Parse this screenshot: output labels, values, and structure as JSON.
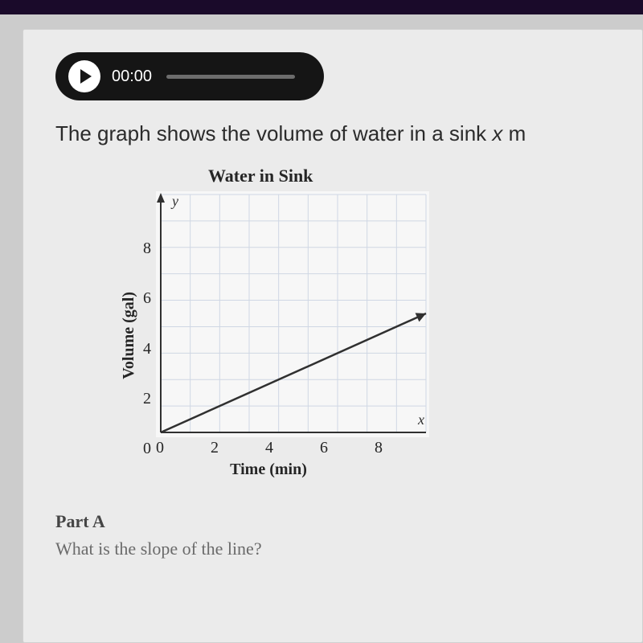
{
  "audio": {
    "time": "00:00"
  },
  "prompt": {
    "prefix": "The graph shows the volume of water in a sink ",
    "var": "x",
    "suffix": " m"
  },
  "chart": {
    "title": "Water in Sink",
    "type": "line",
    "x_label": "Time (min)",
    "y_label": "Volume (gal)",
    "y_var": "y",
    "x_var": "x",
    "xlim": [
      0,
      9
    ],
    "ylim": [
      0,
      9
    ],
    "x_ticks": [
      0,
      2,
      4,
      6,
      8
    ],
    "y_ticks": [
      0,
      2,
      4,
      6,
      8
    ],
    "grid_color": "#cfd7e4",
    "axis_color": "#303030",
    "line_color": "#303030",
    "line_width": 2.5,
    "background_color": "#f7f7f7",
    "line_points": [
      [
        0,
        0
      ],
      [
        9,
        4.5
      ]
    ],
    "arrow": true
  },
  "part": {
    "heading": "Part A",
    "question": "What is the slope of the line?"
  }
}
